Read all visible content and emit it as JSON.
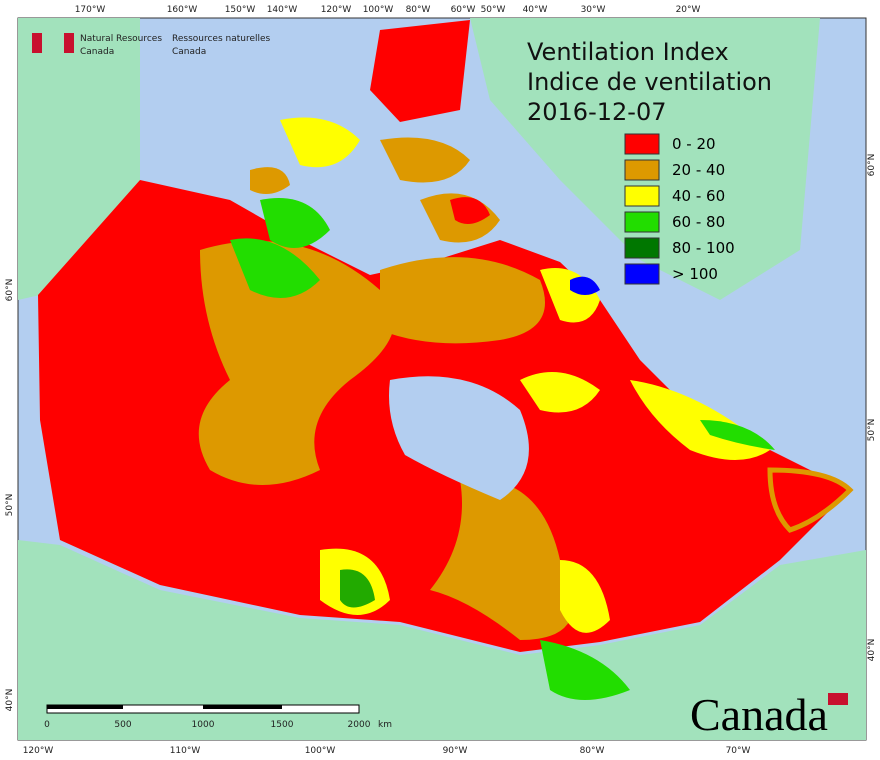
{
  "header": {
    "agency_en": "Natural Resources",
    "agency_en2": "Canada",
    "agency_fr": "Ressources naturelles",
    "agency_fr2": "Canada"
  },
  "title": {
    "line1": "Ventilation Index",
    "line2": "Indice de ventilation",
    "date": "2016-12-07"
  },
  "legend": [
    {
      "label": "0 - 20",
      "color": "#ff0000"
    },
    {
      "label": "20 - 40",
      "color": "#dd9900"
    },
    {
      "label": "40 - 60",
      "color": "#ffff00"
    },
    {
      "label": "60 - 80",
      "color": "#22dd00"
    },
    {
      "label": "80 - 100",
      "color": "#007700"
    },
    {
      "label": "> 100",
      "color": "#0000ff"
    }
  ],
  "graticule": {
    "top": [
      "170°W",
      "160°W",
      "150°W",
      "140°W",
      "120°W",
      "100°W",
      "80°W",
      "60°W",
      "50°W",
      "40°W",
      "30°W",
      "20°W"
    ],
    "bottom": [
      "120°W",
      "110°W",
      "100°W",
      "90°W",
      "80°W",
      "70°W"
    ],
    "left": [
      "60°N",
      "50°N",
      "40°N"
    ],
    "right": [
      "60°N",
      "50°N",
      "40°N"
    ]
  },
  "scale": {
    "ticks": [
      "0",
      "500",
      "1000",
      "1500",
      "2000"
    ],
    "unit": "km"
  },
  "wordmark": "Canada"
}
